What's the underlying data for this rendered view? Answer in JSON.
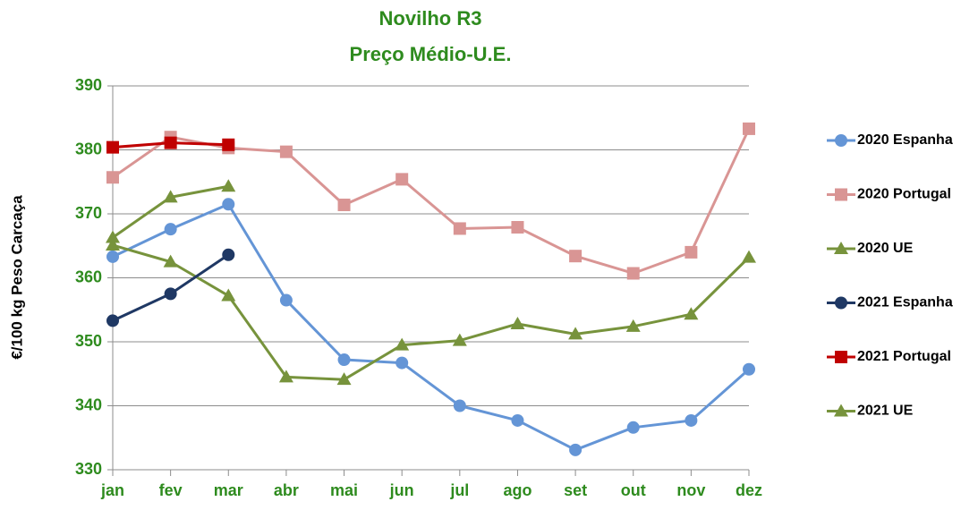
{
  "chart_data": {
    "type": "line",
    "title": "Novilho R3",
    "subtitle": "Preço Médio-U.E.",
    "y_label": "€/100 kg Peso Carcaça",
    "categories": [
      "jan",
      "fev",
      "mar",
      "abr",
      "mai",
      "jun",
      "jul",
      "ago",
      "set",
      "out",
      "nov",
      "dez"
    ],
    "ylim": [
      330,
      390
    ],
    "yticks": [
      330,
      340,
      350,
      360,
      370,
      380,
      390
    ],
    "grid": true,
    "legend": "right",
    "series": [
      {
        "name": "2020 Espanha",
        "color": "#6495d6",
        "marker": "circle",
        "values": [
          363.3,
          367.6,
          371.5,
          356.5,
          347.2,
          346.7,
          340,
          337.7,
          333.1,
          336.6,
          337.7,
          345.7
        ]
      },
      {
        "name": "2020 Portugal",
        "color": "#d99594",
        "marker": "square",
        "values": [
          375.7,
          382,
          380.3,
          379.7,
          371.4,
          375.4,
          367.7,
          367.9,
          363.4,
          360.7,
          364,
          383.3
        ]
      },
      {
        "name": "2020 UE",
        "color": "#77933c",
        "marker": "triangle",
        "values": [
          365.1,
          362.5,
          357.2,
          344.5,
          344.1,
          349.5,
          350.2,
          352.8,
          351.2,
          352.4,
          354.3,
          363.2
        ]
      },
      {
        "name": "2021 Espanha",
        "color": "#1f3864",
        "marker": "circle",
        "values": [
          353.3,
          357.5,
          363.6,
          null,
          null,
          null,
          null,
          null,
          null,
          null,
          null,
          null
        ]
      },
      {
        "name": "2021 Portugal",
        "color": "#c00000",
        "marker": "square",
        "values": [
          380.4,
          381.1,
          380.8,
          null,
          null,
          null,
          null,
          null,
          null,
          null,
          null,
          null
        ]
      },
      {
        "name": "2021 UE",
        "color": "#77933c",
        "marker": "triangle",
        "values": [
          366.3,
          372.6,
          374.3,
          null,
          null,
          null,
          null,
          null,
          null,
          null,
          null,
          null
        ]
      }
    ]
  }
}
